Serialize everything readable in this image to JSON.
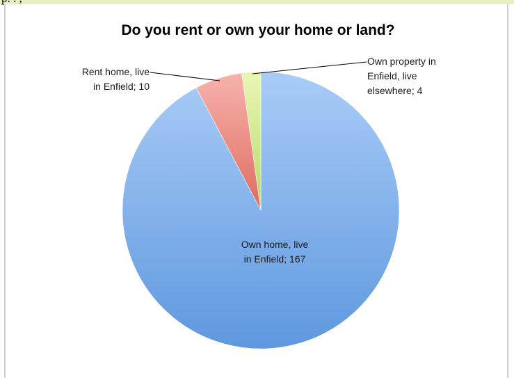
{
  "header_fragment": "p. . ,",
  "chart_data": {
    "type": "pie",
    "title": "Do you rent or own your home or land?",
    "slices": [
      {
        "label_lines": [
          "Own home, live",
          "in Enfield; 167"
        ],
        "category": "Own home, live in Enfield",
        "value": 167,
        "color_light": "#a9ccf7",
        "color_dark": "#5f98df"
      },
      {
        "label_lines": [
          "Rent home, live",
          "in Enfield; 10"
        ],
        "category": "Rent home, live in Enfield",
        "value": 10,
        "color_light": "#f6b3ac",
        "color_dark": "#df6b60"
      },
      {
        "label_lines": [
          "Own property in",
          "Enfield, live",
          "elsewhere; 4"
        ],
        "category": "Own property in Enfield, live elsewhere",
        "value": 4,
        "color_light": "#e9f7b4",
        "color_dark": "#b9d96b"
      }
    ]
  }
}
